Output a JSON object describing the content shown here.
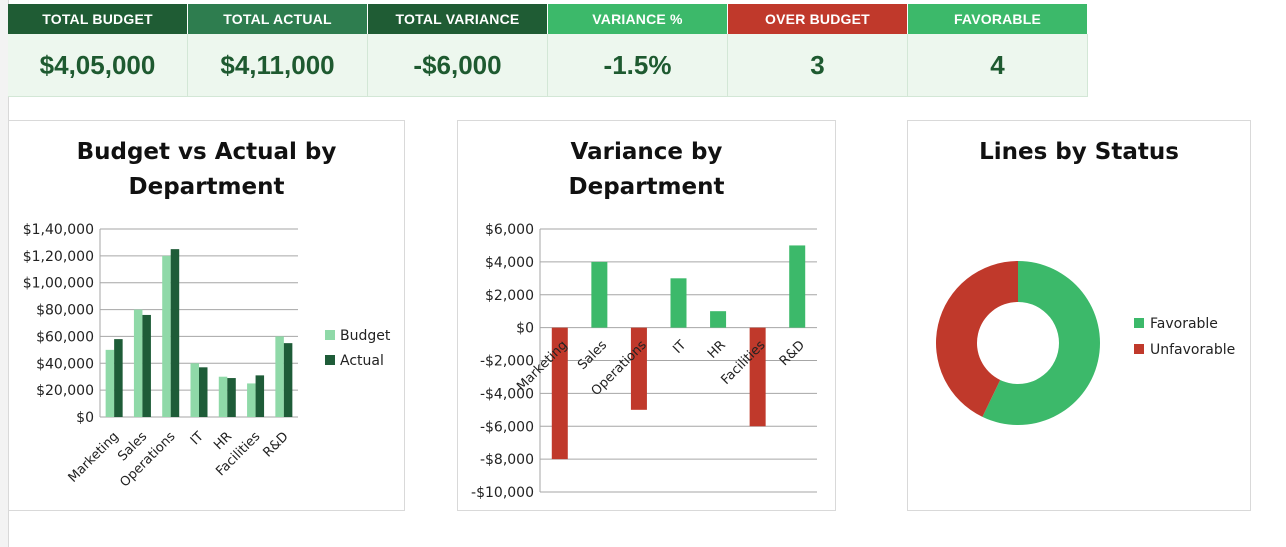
{
  "kpis": [
    {
      "label": "TOTAL BUDGET",
      "value": "$4,05,000",
      "color": "#1f5c34"
    },
    {
      "label": "TOTAL ACTUAL",
      "value": "$4,11,000",
      "color": "#2e7d4f"
    },
    {
      "label": "TOTAL VARIANCE",
      "value": "-$6,000",
      "color": "#1f5c34"
    },
    {
      "label": "VARIANCE %",
      "value": "-1.5%",
      "color": "#3cb96a"
    },
    {
      "label": "OVER BUDGET",
      "value": "3",
      "color": "#c0392b"
    },
    {
      "label": "FAVORABLE",
      "value": "4",
      "color": "#3cb96a"
    }
  ],
  "colors": {
    "budget": "#8fd9a8",
    "actual": "#1e5c38",
    "favorable": "#3cb96a",
    "unfavorable": "#c0392b",
    "gridline": "#a6a6a6"
  },
  "chart_data": [
    {
      "type": "bar",
      "title": "Budget vs Actual by Department",
      "title_lines": [
        "Budget vs Actual by",
        "Department"
      ],
      "categories": [
        "Marketing",
        "Sales",
        "Operations",
        "IT",
        "HR",
        "Facilities",
        "R&D"
      ],
      "series": [
        {
          "name": "Budget",
          "values": [
            50000,
            80000,
            120000,
            40000,
            30000,
            25000,
            60000
          ]
        },
        {
          "name": "Actual",
          "values": [
            58000,
            76000,
            125000,
            37000,
            29000,
            31000,
            55000
          ]
        }
      ],
      "ylim": [
        0,
        140000
      ],
      "yticks": [
        0,
        20000,
        40000,
        60000,
        80000,
        100000,
        120000,
        140000
      ],
      "ytick_labels": [
        "$0",
        "$20,000",
        "$40,000",
        "$60,000",
        "$80,000",
        "$1,00,000",
        "$1,20,000",
        "$1,40,000"
      ],
      "grid": true,
      "legend": "right"
    },
    {
      "type": "bar",
      "title": "Variance by Department",
      "title_lines": [
        "Variance by",
        "Department"
      ],
      "categories": [
        "Marketing",
        "Sales",
        "Operations",
        "IT",
        "HR",
        "Facilities",
        "R&D"
      ],
      "values": [
        -8000,
        4000,
        -5000,
        3000,
        1000,
        -6000,
        5000
      ],
      "ylim": [
        -10000,
        6000
      ],
      "yticks": [
        -10000,
        -8000,
        -6000,
        -4000,
        -2000,
        0,
        2000,
        4000,
        6000
      ],
      "ytick_labels": [
        "-$10,000",
        "-$8,000",
        "-$6,000",
        "-$4,000",
        "-$2,000",
        "$0",
        "$2,000",
        "$4,000",
        "$6,000"
      ],
      "grid": true
    },
    {
      "type": "pie",
      "title": "Lines by Status",
      "title_lines": [
        "Lines by Status"
      ],
      "categories": [
        "Favorable",
        "Unfavorable"
      ],
      "values": [
        4,
        3
      ],
      "legend": "right"
    }
  ]
}
